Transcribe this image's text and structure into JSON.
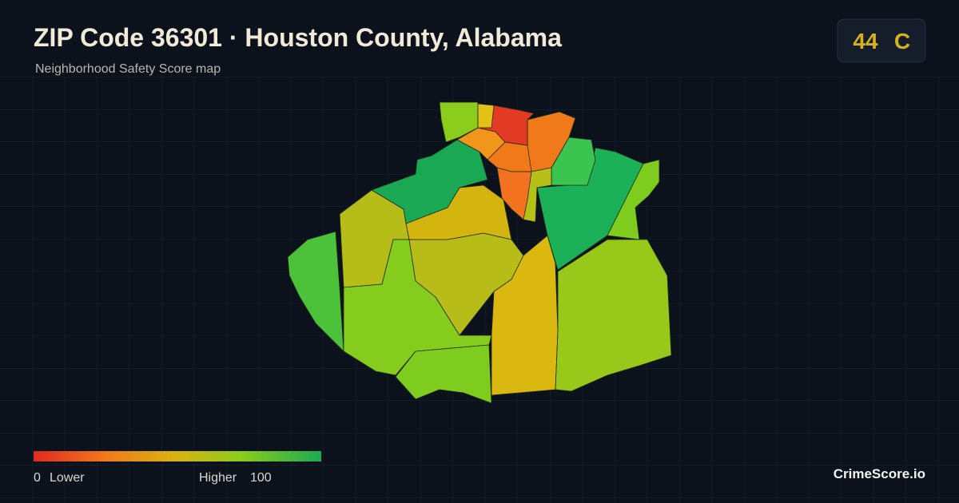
{
  "header": {
    "title": "ZIP Code 36301 · Houston County, Alabama",
    "subtitle": "Neighborhood Safety Score map"
  },
  "score": {
    "value": 44,
    "grade": "C"
  },
  "legend": {
    "min": 0,
    "min_label": "Lower",
    "max_label": "Higher",
    "max": 100
  },
  "brand": "CrimeScore.io"
}
